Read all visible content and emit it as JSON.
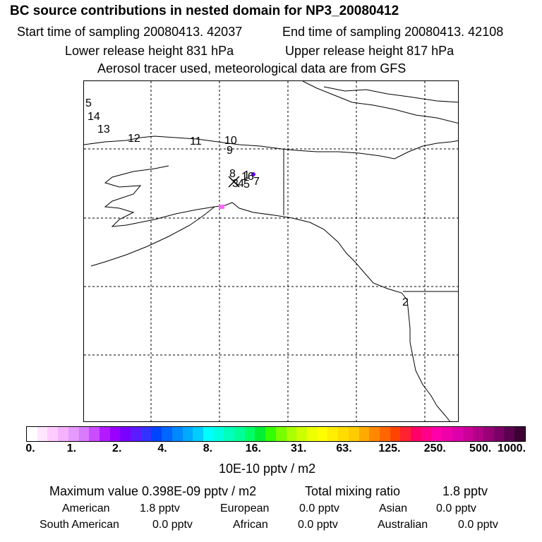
{
  "header": {
    "title": "BC  source contributions in nested domain for NP3_20080412",
    "start_time": "Start time of sampling 20080413. 42037",
    "end_time": "End time of sampling 20080413. 42108",
    "lower_height": "Lower release height  831 hPa",
    "upper_height": "Upper release height  817 hPa",
    "tracer_note": "Aerosol tracer used, meteorological data are from GFS"
  },
  "map": {
    "trajectory_labels": [
      "5",
      "14",
      "13",
      "12",
      "11",
      "10",
      "9",
      "8",
      "16",
      "7",
      "3",
      "4",
      "5",
      "1",
      "2"
    ],
    "coast_color": "#000000",
    "grid_style": "dashed",
    "source_colors": [
      "#ff66ff",
      "#6600ff"
    ]
  },
  "colorbar": {
    "colors": [
      "#ffffff",
      "#ffe6ff",
      "#ffccff",
      "#f5b3ff",
      "#e699ff",
      "#d97aff",
      "#c94dff",
      "#b31aff",
      "#9900ff",
      "#7a00ff",
      "#5c1aff",
      "#3333ff",
      "#0044ff",
      "#0066ff",
      "#0088ff",
      "#00aaff",
      "#00ccff",
      "#00ffff",
      "#00ffe0",
      "#00ffbb",
      "#00ff99",
      "#00ff66",
      "#00ee33",
      "#33ff00",
      "#77ff00",
      "#aaff00",
      "#ccff00",
      "#eeff00",
      "#ffff00",
      "#ffee00",
      "#ffdd00",
      "#ffcc00",
      "#ffaa00",
      "#ff8800",
      "#ff6600",
      "#ff4400",
      "#ff2233",
      "#ff0066",
      "#ff0088",
      "#ff00aa",
      "#ee00aa",
      "#dd00aa",
      "#cc0099",
      "#b30088",
      "#990077",
      "#7a0066",
      "#5c0050",
      "#3d0035"
    ],
    "ticks": [
      "0.",
      "1.",
      "2.",
      "4.",
      "8.",
      "16.",
      "31.",
      "63.",
      "125.",
      "250.",
      "500.",
      "1000."
    ],
    "unit": "10E-10 pptv / m2"
  },
  "stats": {
    "max_value": "Maximum value  0.398E-09 pptv / m2",
    "total_label": "Total mixing ratio",
    "total_value": "1.8 pptv",
    "regions": [
      {
        "name": "American",
        "value": "1.8 pptv"
      },
      {
        "name": "European",
        "value": "0.0 pptv"
      },
      {
        "name": "Asian",
        "value": "0.0 pptv"
      },
      {
        "name": "South American",
        "value": "0.0 pptv"
      },
      {
        "name": "African",
        "value": "0.0 pptv"
      },
      {
        "name": "Australian",
        "value": "0.0 pptv"
      }
    ]
  }
}
